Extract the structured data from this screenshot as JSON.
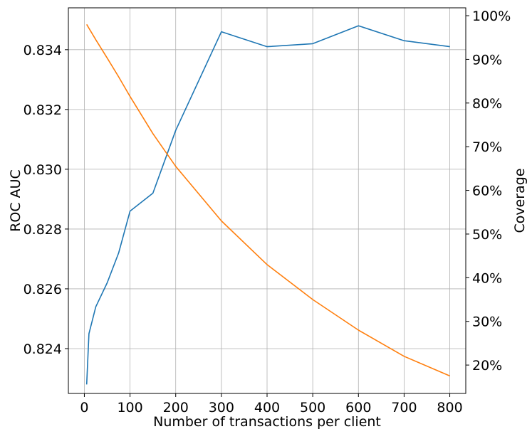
{
  "chart_data": {
    "type": "line",
    "xlabel": "Number of transactions per client",
    "ylabel_left": "ROC AUC",
    "ylabel_right": "Coverage",
    "grid": true,
    "xlim": [
      -35,
      835
    ],
    "ylim_left": [
      0.8225,
      0.8354
    ],
    "ylim_right": [
      13.5,
      101.8
    ],
    "x_ticks": [
      0,
      100,
      200,
      300,
      400,
      500,
      600,
      700,
      800
    ],
    "x_tick_labels": [
      "0",
      "100",
      "200",
      "300",
      "400",
      "500",
      "600",
      "700",
      "800"
    ],
    "y_left_ticks": [
      0.824,
      0.826,
      0.828,
      0.83,
      0.832,
      0.834
    ],
    "y_left_tick_labels": [
      "0.824",
      "0.826",
      "0.828",
      "0.830",
      "0.832",
      "0.834"
    ],
    "y_right_ticks": [
      20,
      30,
      40,
      50,
      60,
      70,
      80,
      90,
      100
    ],
    "y_right_tick_labels": [
      "20%",
      "30%",
      "40%",
      "50%",
      "60%",
      "70%",
      "80%",
      "90%",
      "100%"
    ],
    "series": [
      {
        "axis": "left",
        "color": "#1f77b4",
        "x": [
          5,
          10,
          25,
          50,
          75,
          100,
          150,
          200,
          300,
          400,
          500,
          600,
          700,
          800
        ],
        "values": [
          0.8228,
          0.8245,
          0.8254,
          0.8262,
          0.8272,
          0.8286,
          0.8292,
          0.8313,
          0.8346,
          0.8341,
          0.8342,
          0.8348,
          0.8343,
          0.8341
        ]
      },
      {
        "axis": "right",
        "color": "#ff7f0e",
        "x": [
          5,
          25,
          50,
          75,
          100,
          150,
          200,
          300,
          400,
          500,
          600,
          700,
          800
        ],
        "values": [
          98.0,
          94.5,
          90.3,
          86.0,
          81.5,
          73.0,
          65.5,
          53.0,
          43.0,
          35.0,
          28.0,
          22.0,
          17.5
        ]
      }
    ]
  }
}
